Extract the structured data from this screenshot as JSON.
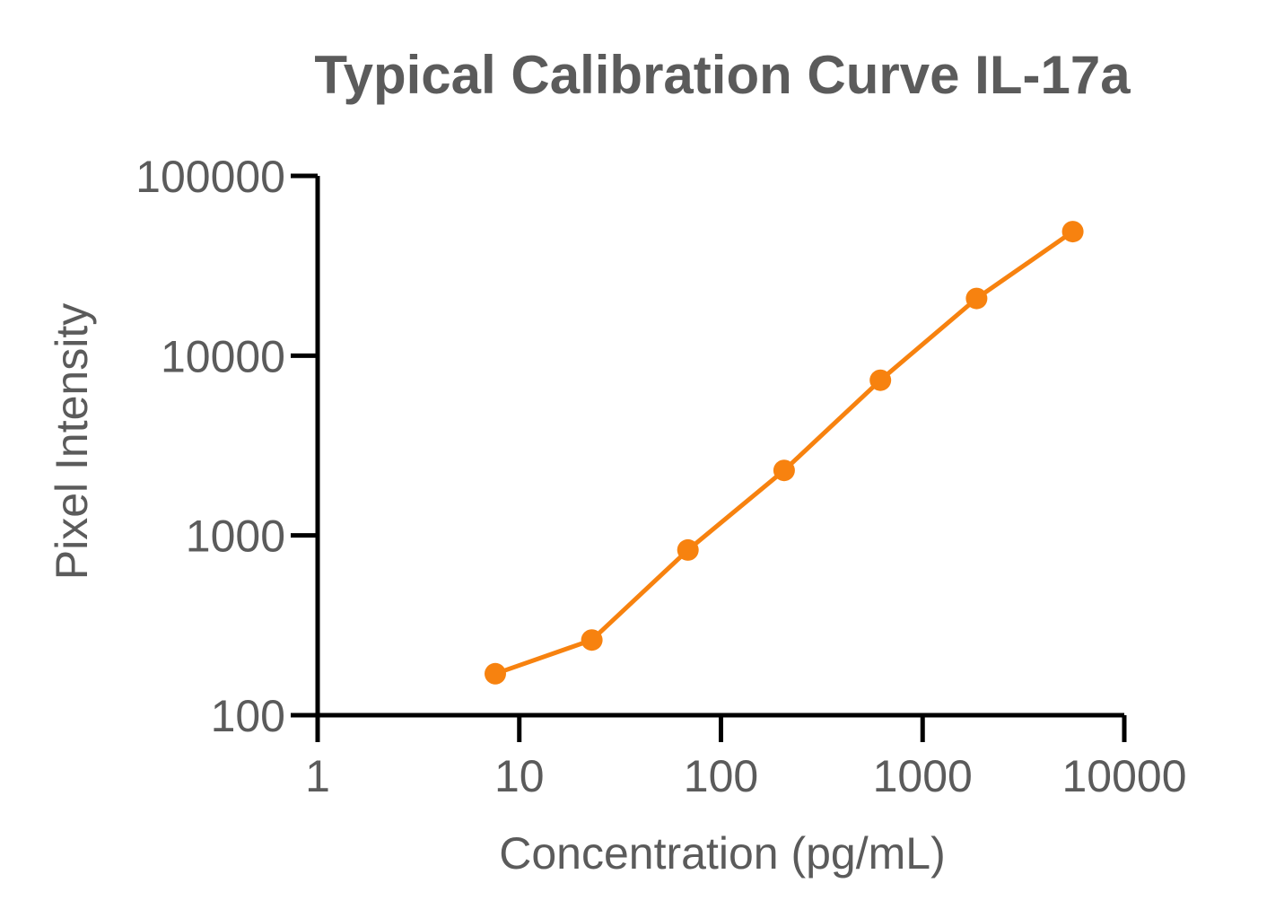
{
  "chart_data": {
    "type": "line",
    "title": "Typical Calibration Curve IL-17a",
    "xlabel": "Concentration (pg/mL)",
    "ylabel": "Pixel Intensity",
    "xscale": "log",
    "yscale": "log",
    "xlim": [
      1,
      10000
    ],
    "ylim": [
      100,
      100000
    ],
    "xticks": [
      "1",
      "10",
      "100",
      "1000",
      "10000"
    ],
    "yticks": [
      "100",
      "1000",
      "10000",
      "100000"
    ],
    "grid": false,
    "legend": "none",
    "series": [
      {
        "color": "#f7820f",
        "marker": "circle",
        "x": [
          7.6,
          22.9,
          68.6,
          205.8,
          617.3,
          1852,
          5556
        ],
        "y": [
          170,
          262,
          830,
          2300,
          7300,
          20800,
          49000
        ]
      }
    ]
  }
}
